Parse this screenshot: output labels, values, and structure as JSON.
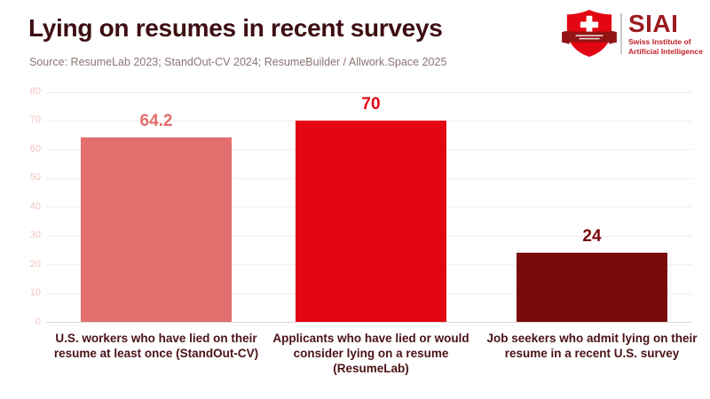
{
  "header": {
    "title": "Lying on resumes in recent surveys",
    "source": "Source: ResumeLab 2023; StandOut-CV 2024; ResumeBuilder / Allwork.Space 2025"
  },
  "logo": {
    "wordmark": "SIAI",
    "subtitle_line1": "Swiss Institute of",
    "subtitle_line2": "Artificial Intelligence"
  },
  "chart_data": {
    "type": "bar",
    "title": "Lying on resumes in recent surveys",
    "categories": [
      "U.S. workers who have lied on their resume at least once (StandOut-CV)",
      "Applicants who have lied or would consider lying on a resume (ResumeLab)",
      "Job seekers who admit lying on their resume in a recent U.S. survey"
    ],
    "values": [
      64.2,
      70,
      24
    ],
    "value_labels": [
      "64.2",
      "70",
      "24"
    ],
    "bar_colors": [
      "#e26e6e",
      "#e30613",
      "#7a0a0a"
    ],
    "xlabel": "",
    "ylabel": "",
    "ylim": [
      0,
      80
    ],
    "yticks": [
      0,
      10,
      20,
      30,
      40,
      50,
      60,
      70,
      80
    ],
    "grid": true,
    "legend": "none"
  },
  "colors": {
    "title": "#3d0e12",
    "source": "#8d7474",
    "xlabel": "#4a1216",
    "tick": "#f2c4c0",
    "grid": "#faeae7",
    "baseline": "#d9d9d9",
    "logo_red": "#9d1b1f",
    "logo_sub": "#c22127",
    "swiss_red": "#e30613",
    "ribbon": "#941414"
  }
}
